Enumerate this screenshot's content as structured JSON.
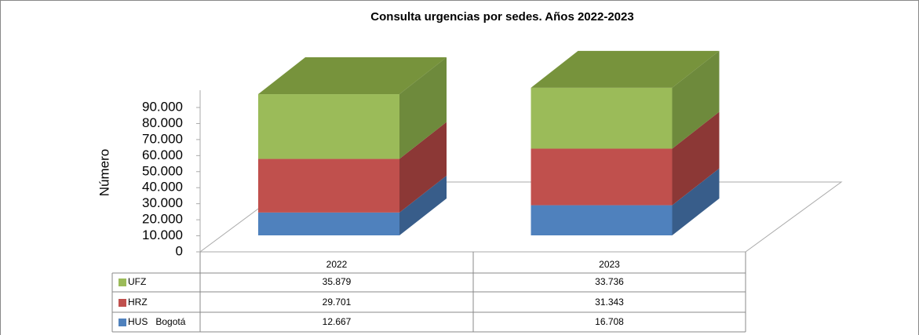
{
  "chart_data": {
    "type": "bar3d_stacked",
    "title": "Consulta urgencias por sedes. Años 2022-2023",
    "y_label": "Número",
    "categories": [
      "2022",
      "2023"
    ],
    "series": [
      {
        "name": "HUS   Bogotá",
        "color": "#4f81bd",
        "side_color": "#385d8a",
        "values": [
          12667,
          16708
        ],
        "value_labels": [
          "12.667",
          "16.708"
        ]
      },
      {
        "name": "HRZ",
        "color": "#c0504d",
        "side_color": "#8c3836",
        "values": [
          29701,
          31343
        ],
        "value_labels": [
          "29.701",
          "31.343"
        ]
      },
      {
        "name": "UFZ",
        "color": "#9bbb59",
        "side_color": "#6e8a3c",
        "top_color": "#77933c",
        "values": [
          35879,
          33736
        ],
        "value_labels": [
          "35.879",
          "33.736"
        ]
      }
    ],
    "ylim": [
      0,
      90000
    ],
    "yticks": [
      0,
      {
        "value": 10000,
        "label": "10.000"
      },
      {
        "value": 20000,
        "label": "20.000"
      },
      {
        "value": 30000,
        "label": "30.000"
      },
      {
        "value": 40000,
        "label": "40.000"
      },
      {
        "value": 50000,
        "label": "50.000"
      },
      {
        "value": 60000,
        "label": "60.000"
      },
      {
        "value": 70000,
        "label": "70.000"
      },
      {
        "value": 80000,
        "label": "80.000"
      },
      {
        "value": 90000,
        "label": "90.000"
      }
    ]
  }
}
